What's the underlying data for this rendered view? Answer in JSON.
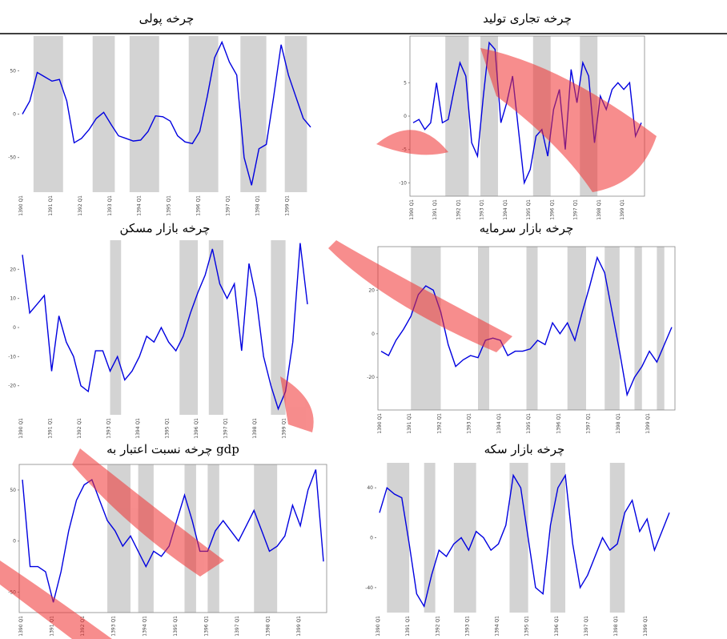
{
  "chart_data": [
    {
      "type": "line",
      "title": "چرخه تجاری تولید",
      "categories": [
        "1390 Q1",
        null,
        null,
        null,
        "1391 Q1",
        null,
        null,
        null,
        "1392 Q1",
        null,
        null,
        null,
        "1393 Q1",
        null,
        null,
        null,
        "1394 Q1",
        null,
        null,
        null,
        "1395 Q1",
        null,
        null,
        null,
        "1396 Q1",
        null,
        null,
        null,
        "1397 Q1",
        null,
        null,
        null,
        "1398 Q1",
        null,
        null,
        null,
        "1399 Q1",
        null,
        null,
        null
      ],
      "series": [
        {
          "color": "#0000e0",
          "values": [
            -1,
            -0.5,
            -2,
            -1,
            5,
            -1,
            -0.5,
            4,
            8,
            6,
            -4,
            -6,
            3,
            11,
            10,
            -1,
            2,
            6,
            -2,
            -10,
            -8,
            -3,
            -2,
            -6,
            1,
            4,
            -5,
            7,
            2,
            8,
            6,
            -4,
            3,
            1,
            4,
            5,
            4,
            5,
            -3,
            -1
          ]
        }
      ],
      "ylim": [
        -12,
        12
      ],
      "yticks": [
        -10,
        -5,
        0,
        5
      ],
      "bands": [
        [
          5.5,
          9.5
        ],
        [
          11.5,
          14.5
        ],
        [
          20.5,
          23.5
        ],
        [
          28.5,
          31.5
        ]
      ],
      "frame": true
    },
    {
      "type": "line",
      "title": "چرخه پولی",
      "categories": [
        "1390 Q1",
        null,
        null,
        null,
        "1391 Q1",
        null,
        null,
        null,
        "1392 Q1",
        null,
        null,
        null,
        "1393 Q1",
        null,
        null,
        null,
        "1394 Q1",
        null,
        null,
        null,
        "1395 Q1",
        null,
        null,
        null,
        "1396 Q1",
        null,
        null,
        null,
        "1397 Q1",
        null,
        null,
        null,
        "1398 Q1",
        null,
        null,
        null,
        "1399 Q1",
        null,
        null,
        null
      ],
      "series": [
        {
          "color": "#0000e0",
          "values": [
            0,
            15,
            48,
            43,
            38,
            40,
            15,
            -33,
            -28,
            -18,
            -5,
            2,
            -12,
            -25,
            -28,
            -31,
            -30,
            -20,
            -2,
            -3,
            -8,
            -25,
            -32,
            -34,
            -20,
            20,
            65,
            83,
            60,
            45,
            -50,
            -82,
            -40,
            -35,
            20,
            80,
            45,
            20,
            -5,
            -15
          ]
        }
      ],
      "ylim": [
        -90,
        90
      ],
      "yticks": [
        -50,
        0,
        50
      ],
      "bands": [
        [
          1.5,
          5.5
        ],
        [
          9.5,
          12.5
        ],
        [
          14.5,
          18.5
        ],
        [
          22.5,
          26.5
        ],
        [
          29.5,
          33
        ],
        [
          35.5,
          38.5
        ]
      ],
      "frame": false
    },
    {
      "type": "line",
      "title": "چرخه بازار سرمایه",
      "categories": [
        "1390 Q1",
        null,
        null,
        null,
        "1391 Q1",
        null,
        null,
        null,
        "1392 Q1",
        null,
        null,
        null,
        "1393 Q1",
        null,
        null,
        null,
        "1394 Q1",
        null,
        null,
        null,
        "1395 Q1",
        null,
        null,
        null,
        "1396 Q1",
        null,
        null,
        null,
        "1397 Q1",
        null,
        null,
        null,
        "1398 Q1",
        null,
        null,
        null,
        "1399 Q1",
        null,
        null,
        null
      ],
      "series": [
        {
          "color": "#0000e0",
          "values": [
            -8,
            -10,
            -3,
            2,
            8,
            18,
            22,
            20,
            10,
            -5,
            -15,
            -12,
            -10,
            -11,
            -3,
            -2,
            -3,
            -10,
            -8,
            -8,
            -7,
            -3,
            -5,
            5,
            0,
            5,
            -3,
            10,
            22,
            35,
            28,
            10,
            -8,
            -28,
            -20,
            -15,
            -8,
            -13,
            -5,
            3
          ]
        }
      ],
      "ylim": [
        -35,
        40
      ],
      "yticks": [
        -20,
        0,
        20
      ],
      "bands": [
        [
          4,
          8
        ],
        [
          13,
          14.5
        ],
        [
          19.5,
          21
        ],
        [
          25,
          27.5
        ],
        [
          30,
          32
        ],
        [
          34,
          35
        ],
        [
          37,
          38
        ]
      ],
      "frame": true
    },
    {
      "type": "line",
      "title": "چرخه بازار مسکن",
      "categories": [
        "1390 Q1",
        null,
        null,
        null,
        "1391 Q1",
        null,
        null,
        null,
        "1392 Q1",
        null,
        null,
        null,
        "1393 Q1",
        null,
        null,
        null,
        "1394 Q1",
        null,
        null,
        null,
        "1395 Q1",
        null,
        null,
        null,
        "1396 Q1",
        null,
        null,
        null,
        "1397 Q1",
        null,
        null,
        null,
        "1398 Q1",
        null,
        null,
        null,
        "1399 Q1",
        null,
        null,
        null
      ],
      "series": [
        {
          "color": "#0000e0",
          "values": [
            25,
            5,
            8,
            11,
            -15,
            4,
            -5,
            -10,
            -20,
            -22,
            -8,
            -8,
            -15,
            -10,
            -18,
            -15,
            -10,
            -3,
            -5,
            0,
            -5,
            -8,
            -3,
            5,
            12,
            18,
            27,
            15,
            10,
            15,
            -8,
            22,
            10,
            -10,
            -20,
            -28,
            -22,
            -5,
            29,
            8
          ]
        }
      ],
      "ylim": [
        -30,
        30
      ],
      "yticks": [
        -20,
        -10,
        0,
        10,
        20
      ],
      "bands": [
        [
          12,
          13.5
        ],
        [
          21.5,
          24
        ],
        [
          25.5,
          27.5
        ],
        [
          34,
          36
        ]
      ],
      "frame": false
    },
    {
      "type": "line",
      "title": "چرخه بازار سکه",
      "categories": [
        "1390 Q1",
        null,
        null,
        null,
        "1391 Q1",
        null,
        null,
        null,
        "1392 Q1",
        null,
        null,
        null,
        "1393 Q1",
        null,
        null,
        null,
        "1394 Q1",
        null,
        null,
        null,
        "1395 Q1",
        null,
        null,
        null,
        "1396 Q1",
        null,
        null,
        null,
        "1397 Q1",
        null,
        null,
        null,
        "1398 Q1",
        null,
        null,
        null,
        "1399 Q1",
        null,
        null,
        null
      ],
      "series": [
        {
          "color": "#0000e0",
          "values": [
            20,
            40,
            35,
            32,
            -5,
            -45,
            -55,
            -30,
            -10,
            -15,
            -5,
            0,
            -10,
            5,
            0,
            -10,
            -5,
            10,
            50,
            40,
            0,
            -40,
            -45,
            10,
            40,
            50,
            -5,
            -40,
            -30,
            -15,
            0,
            -10,
            -5,
            20,
            30,
            5,
            15,
            -10,
            5,
            20
          ]
        }
      ],
      "ylim": [
        -60,
        60
      ],
      "yticks": [
        -40,
        0,
        40
      ],
      "bands": [
        [
          1,
          4
        ],
        [
          6,
          7.5
        ],
        [
          10,
          13
        ],
        [
          17.5,
          20
        ],
        [
          23,
          25
        ],
        [
          31,
          33
        ]
      ],
      "frame": false
    },
    {
      "type": "line",
      "title": "چرخه نسبت اعتبار به gdp",
      "categories": [
        "1390 Q1",
        null,
        null,
        null,
        "1391 Q1",
        null,
        null,
        null,
        "1392 Q1",
        null,
        null,
        null,
        "1393 Q1",
        null,
        null,
        null,
        "1394 Q1",
        null,
        null,
        null,
        "1395 Q1",
        null,
        null,
        null,
        "1396 Q1",
        null,
        null,
        null,
        "1397 Q1",
        null,
        null,
        null,
        "1398 Q1",
        null,
        null,
        null,
        "1399 Q1",
        null,
        null,
        null
      ],
      "series": [
        {
          "color": "#0000e0",
          "values": [
            60,
            -25,
            -25,
            -30,
            -60,
            -30,
            10,
            40,
            55,
            60,
            40,
            20,
            10,
            -5,
            5,
            -10,
            -25,
            -10,
            -15,
            -5,
            20,
            45,
            20,
            -10,
            -10,
            10,
            20,
            10,
            0,
            15,
            30,
            10,
            -10,
            -5,
            5,
            35,
            15,
            50,
            70,
            -20
          ]
        }
      ],
      "ylim": [
        -70,
        75
      ],
      "yticks": [
        -50,
        0,
        50
      ],
      "bands": [
        [
          11,
          14
        ],
        [
          15,
          17
        ],
        [
          21,
          22.5
        ],
        [
          24,
          25.5
        ],
        [
          30,
          33
        ]
      ],
      "frame": true
    }
  ]
}
